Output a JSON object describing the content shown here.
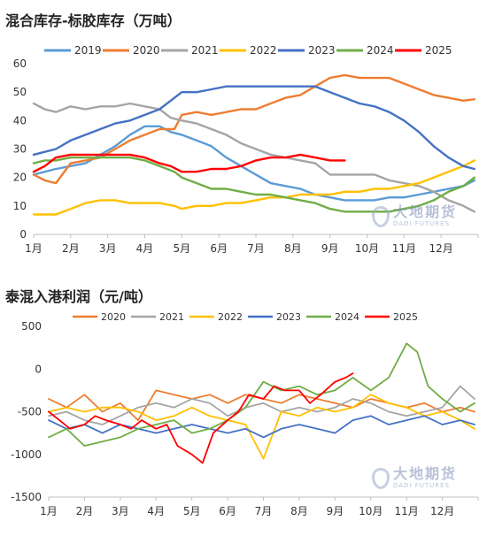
{
  "chart_data": [
    {
      "type": "line",
      "title": "混合库存-标胶库存（万吨）",
      "categories": [
        "1月",
        "2月",
        "3月",
        "4月",
        "5月",
        "6月",
        "7月",
        "8月",
        "9月",
        "10月",
        "11月",
        "12月"
      ],
      "ylim": [
        0,
        60
      ],
      "yticks": [
        0,
        10,
        20,
        30,
        40,
        50,
        60
      ],
      "grid": false,
      "legend": "top",
      "series": [
        {
          "name": "2019",
          "color": "#5b9bd5",
          "x": [
            1,
            1.3,
            1.6,
            2,
            2.4,
            2.8,
            3.2,
            3.6,
            4,
            4.4,
            4.7,
            5,
            5.4,
            5.8,
            6.2,
            6.6,
            7,
            7.4,
            7.8,
            8.2,
            8.6,
            9,
            9.4,
            9.8,
            10.2,
            10.6,
            11,
            11.4,
            11.8,
            12.2,
            12.6,
            12.9
          ],
          "y": [
            21,
            22,
            23,
            24,
            25,
            28,
            31,
            35,
            38,
            38,
            36,
            35,
            33,
            31,
            27,
            24,
            21,
            18,
            17,
            16,
            14,
            13,
            12,
            12,
            12,
            13,
            13,
            14,
            15,
            16,
            17,
            19
          ]
        },
        {
          "name": "2020",
          "color": "#ed7d31",
          "x": [
            1,
            1.3,
            1.6,
            2,
            2.4,
            2.8,
            3.2,
            3.6,
            4,
            4.4,
            4.8,
            5,
            5.4,
            5.8,
            6.2,
            6.6,
            7,
            7.4,
            7.8,
            8.2,
            8.6,
            9,
            9.4,
            9.8,
            10.2,
            10.6,
            11,
            11.4,
            11.8,
            12.2,
            12.6,
            12.9
          ],
          "y": [
            21,
            19,
            18,
            25,
            26,
            27,
            30,
            33,
            35,
            37,
            37,
            42,
            43,
            42,
            43,
            44,
            44,
            46,
            48,
            49,
            52,
            55,
            56,
            55,
            55,
            55,
            53,
            51,
            49,
            48,
            47,
            47.5
          ]
        },
        {
          "name": "2021",
          "color": "#a5a5a5",
          "x": [
            1,
            1.3,
            1.6,
            2,
            2.4,
            2.8,
            3.2,
            3.6,
            4,
            4.4,
            4.7,
            5,
            5.4,
            5.8,
            6.2,
            6.6,
            7,
            7.4,
            7.8,
            8.2,
            8.6,
            9,
            9.4,
            9.8,
            10.2,
            10.6,
            11,
            11.4,
            11.8,
            12.2,
            12.6,
            12.9
          ],
          "y": [
            46,
            44,
            43,
            45,
            44,
            45,
            45,
            46,
            45,
            44,
            41,
            40,
            39,
            37,
            35,
            32,
            30,
            28,
            27,
            26,
            25,
            21,
            21,
            21,
            21,
            19,
            18,
            17,
            15,
            12,
            10,
            8
          ]
        },
        {
          "name": "2022",
          "color": "#ffc000",
          "x": [
            1,
            1.3,
            1.6,
            2,
            2.4,
            2.8,
            3.2,
            3.6,
            4,
            4.4,
            4.8,
            5,
            5.4,
            5.8,
            6.2,
            6.6,
            7,
            7.4,
            7.8,
            8.2,
            8.6,
            9,
            9.4,
            9.8,
            10.2,
            10.6,
            11,
            11.4,
            11.8,
            12.2,
            12.6,
            12.9
          ],
          "y": [
            7,
            7,
            7,
            9,
            11,
            12,
            12,
            11,
            11,
            11,
            10,
            9,
            10,
            10,
            11,
            11,
            12,
            13,
            13,
            14,
            14,
            14,
            15,
            15,
            16,
            16,
            17,
            18,
            20,
            22,
            24,
            26
          ]
        },
        {
          "name": "2023",
          "color": "#4472c4",
          "x": [
            1,
            1.3,
            1.6,
            2,
            2.4,
            2.8,
            3.2,
            3.6,
            4,
            4.4,
            4.8,
            5,
            5.4,
            5.8,
            6.2,
            6.6,
            7,
            7.4,
            7.8,
            8.2,
            8.6,
            9,
            9.4,
            9.8,
            10.2,
            10.6,
            11,
            11.4,
            11.8,
            12.2,
            12.6,
            12.9
          ],
          "y": [
            28,
            29,
            30,
            33,
            35,
            37,
            39,
            40,
            42,
            44,
            48,
            50,
            50,
            51,
            52,
            52,
            52,
            52,
            52,
            52,
            52,
            50,
            48,
            46,
            45,
            43,
            40,
            36,
            31,
            27,
            24,
            23
          ]
        },
        {
          "name": "2024",
          "color": "#70ad47",
          "x": [
            1,
            1.3,
            1.6,
            2,
            2.4,
            2.8,
            3.2,
            3.6,
            4,
            4.4,
            4.8,
            5,
            5.4,
            5.8,
            6.2,
            6.6,
            7,
            7.4,
            7.8,
            8.2,
            8.6,
            9,
            9.4,
            9.8,
            10.2,
            10.6,
            11,
            11.4,
            11.8,
            12.2,
            12.6,
            12.9
          ],
          "y": [
            25,
            26,
            26,
            27,
            27,
            27,
            27,
            27,
            26,
            24,
            22,
            20,
            18,
            16,
            16,
            15,
            14,
            14,
            13,
            12,
            11,
            9,
            8,
            8,
            8,
            8,
            9,
            10,
            12,
            15,
            17,
            20
          ]
        },
        {
          "name": "2025",
          "color": "#ff0000",
          "x": [
            1,
            1.3,
            1.6,
            2,
            2.4,
            2.8,
            3.2,
            3.6,
            4,
            4.4,
            4.7,
            5,
            5.4,
            5.8,
            6.2,
            6.6,
            7,
            7.4,
            7.8,
            8.2,
            8.6,
            9,
            9.4
          ],
          "y": [
            22,
            24,
            27,
            28,
            28,
            28,
            28,
            28,
            27,
            25,
            24,
            22,
            22,
            23,
            23,
            24,
            26,
            27,
            27,
            28,
            27,
            26,
            26
          ]
        }
      ]
    },
    {
      "type": "line",
      "title": "泰混入港利润（元/吨）",
      "categories": [
        "1月",
        "2月",
        "3月",
        "4月",
        "5月",
        "6月",
        "7月",
        "8月",
        "9月",
        "10月",
        "11月",
        "12月"
      ],
      "ylim": [
        -1500,
        500
      ],
      "yticks": [
        -1500,
        -1000,
        -500,
        0,
        500
      ],
      "grid": false,
      "legend": "top",
      "series": [
        {
          "name": "2020",
          "color": "#ed7d31",
          "x": [
            1,
            1.5,
            2,
            2.5,
            3,
            3.5,
            4,
            4.5,
            5,
            5.5,
            6,
            6.5,
            7,
            7.5,
            8,
            8.5,
            9,
            9.5,
            10,
            10.5,
            11,
            11.5,
            12,
            12.5,
            12.9
          ],
          "y": [
            -350,
            -450,
            -300,
            -500,
            -400,
            -600,
            -250,
            -300,
            -350,
            -300,
            -400,
            -300,
            -350,
            -400,
            -300,
            -350,
            -400,
            -450,
            -350,
            -400,
            -450,
            -400,
            -500,
            -450,
            -500
          ]
        },
        {
          "name": "2021",
          "color": "#a5a5a5",
          "x": [
            1,
            1.5,
            2,
            2.5,
            3,
            3.5,
            4,
            4.5,
            5,
            5.5,
            6,
            6.5,
            7,
            7.5,
            8,
            8.5,
            9,
            9.5,
            10,
            10.5,
            11,
            11.5,
            12,
            12.5,
            12.9
          ],
          "y": [
            -550,
            -500,
            -600,
            -650,
            -550,
            -450,
            -400,
            -450,
            -350,
            -400,
            -550,
            -450,
            -400,
            -500,
            -450,
            -500,
            -450,
            -350,
            -400,
            -500,
            -550,
            -500,
            -450,
            -200,
            -350
          ]
        },
        {
          "name": "2022",
          "color": "#ffc000",
          "x": [
            1,
            1.5,
            2,
            2.5,
            3,
            3.5,
            4,
            4.5,
            5,
            5.5,
            6,
            6.5,
            7,
            7.5,
            8,
            8.5,
            9,
            9.5,
            10,
            10.5,
            11,
            11.5,
            12,
            12.5,
            12.9
          ],
          "y": [
            -500,
            -450,
            -500,
            -450,
            -450,
            -500,
            -600,
            -550,
            -450,
            -550,
            -600,
            -650,
            -1050,
            -500,
            -550,
            -450,
            -500,
            -450,
            -300,
            -400,
            -450,
            -550,
            -500,
            -600,
            -700
          ]
        },
        {
          "name": "2023",
          "color": "#4472c4",
          "x": [
            1,
            1.5,
            2,
            2.5,
            3,
            3.5,
            4,
            4.5,
            5,
            5.5,
            6,
            6.5,
            7,
            7.5,
            8,
            8.5,
            9,
            9.5,
            10,
            10.5,
            11,
            11.5,
            12,
            12.5,
            12.9
          ],
          "y": [
            -600,
            -700,
            -650,
            -750,
            -650,
            -700,
            -750,
            -700,
            -650,
            -700,
            -750,
            -700,
            -800,
            -700,
            -650,
            -700,
            -750,
            -600,
            -550,
            -650,
            -600,
            -550,
            -650,
            -600,
            -650
          ]
        },
        {
          "name": "2024",
          "color": "#70ad47",
          "x": [
            1,
            1.5,
            2,
            2.5,
            3,
            3.5,
            4,
            4.5,
            5,
            5.5,
            6,
            6.5,
            7,
            7.5,
            8,
            8.5,
            9,
            9.5,
            10,
            10.5,
            11,
            11.3,
            11.6,
            12,
            12.5,
            12.9
          ],
          "y": [
            -800,
            -700,
            -900,
            -850,
            -800,
            -700,
            -650,
            -600,
            -750,
            -700,
            -600,
            -450,
            -150,
            -250,
            -200,
            -300,
            -250,
            -100,
            -250,
            -100,
            300,
            200,
            -200,
            -350,
            -500,
            -400
          ]
        },
        {
          "name": "2025",
          "color": "#ff0000",
          "x": [
            1,
            1.3,
            1.6,
            2,
            2.3,
            2.6,
            3,
            3.3,
            3.6,
            4,
            4.3,
            4.6,
            5,
            5.3,
            5.6,
            6,
            6.3,
            6.6,
            7,
            7.3,
            7.6,
            8,
            8.3,
            8.6,
            9,
            9.3,
            9.5
          ],
          "y": [
            -500,
            -600,
            -700,
            -650,
            -550,
            -600,
            -650,
            -700,
            -600,
            -700,
            -650,
            -900,
            -1000,
            -1100,
            -750,
            -600,
            -500,
            -300,
            -350,
            -200,
            -250,
            -250,
            -400,
            -300,
            -150,
            -100,
            -50
          ]
        }
      ]
    }
  ],
  "watermark": {
    "cn": "大地期货",
    "en": "DADI FUTURES"
  }
}
